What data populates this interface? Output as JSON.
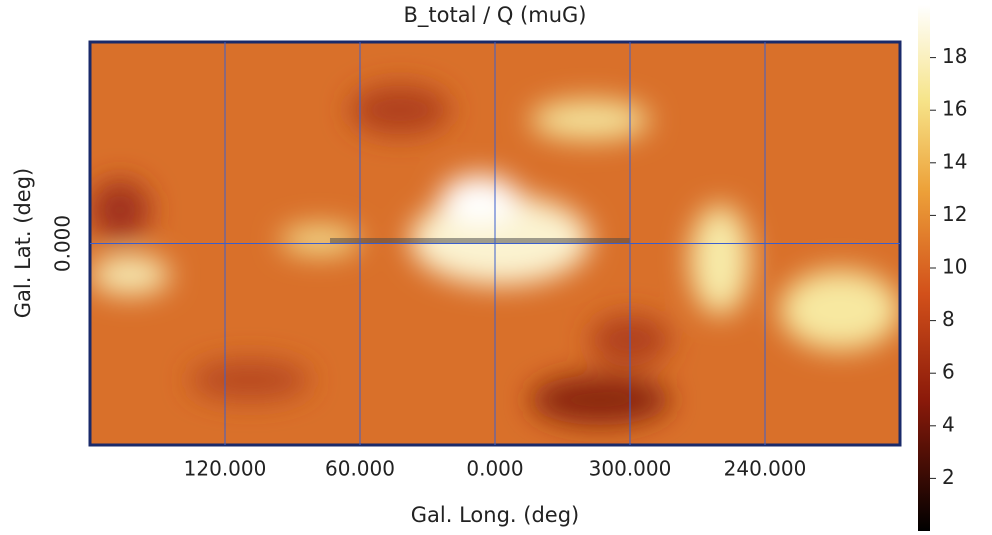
{
  "chart_data": {
    "type": "heatmap",
    "title": "B_total / Q (muG)",
    "x_label": "Gal. Long. (deg)",
    "y_label": "Gal. Lat. (deg)",
    "xlim": [
      180,
      -180
    ],
    "ylim": [
      -90,
      90
    ],
    "xticks": [
      {
        "value": 120,
        "label": "120.000"
      },
      {
        "value": 60,
        "label": "60.000"
      },
      {
        "value": 0,
        "label": "0.000"
      },
      {
        "value": 300,
        "label": "300.000"
      },
      {
        "value": 240,
        "label": "240.000"
      }
    ],
    "yticks": [
      {
        "value": 0,
        "label": "0.000"
      }
    ],
    "grid": true,
    "grid_color": "#3a5fcd",
    "colorbar": {
      "lim": [
        0,
        20
      ],
      "ticks": [
        2,
        4,
        6,
        8,
        10,
        12,
        14,
        16,
        18
      ]
    }
  }
}
